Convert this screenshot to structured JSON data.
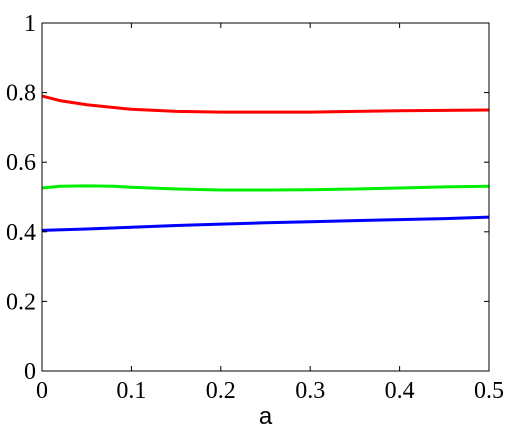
{
  "chart_data": {
    "type": "line",
    "xlabel": "a",
    "ylabel": "",
    "xlim": [
      0,
      0.5
    ],
    "ylim": [
      0,
      1
    ],
    "xticks": [
      0,
      0.1,
      0.2,
      0.3,
      0.4,
      0.5
    ],
    "xtick_labels": [
      "0",
      "0.1",
      "0.2",
      "0.3",
      "0.4",
      "0.5"
    ],
    "yticks": [
      0,
      0.2,
      0.4,
      0.6,
      0.8,
      1
    ],
    "ytick_labels": [
      "0",
      "0.2",
      "0.4",
      "0.6",
      "0.8",
      "1"
    ],
    "grid": false,
    "series": [
      {
        "color": "#ff0000",
        "x": [
          0,
          0.02,
          0.05,
          0.1,
          0.15,
          0.2,
          0.25,
          0.3,
          0.35,
          0.4,
          0.45,
          0.5
        ],
        "y": [
          0.79,
          0.777,
          0.765,
          0.752,
          0.746,
          0.744,
          0.744,
          0.744,
          0.746,
          0.748,
          0.749,
          0.75
        ]
      },
      {
        "color": "#00ee00",
        "x": [
          0,
          0.02,
          0.05,
          0.08,
          0.1,
          0.15,
          0.2,
          0.25,
          0.3,
          0.35,
          0.4,
          0.45,
          0.5
        ],
        "y": [
          0.526,
          0.531,
          0.532,
          0.531,
          0.528,
          0.523,
          0.52,
          0.52,
          0.521,
          0.523,
          0.526,
          0.529,
          0.531
        ]
      },
      {
        "color": "#0000ff",
        "x": [
          0,
          0.05,
          0.1,
          0.15,
          0.2,
          0.25,
          0.3,
          0.35,
          0.4,
          0.45,
          0.5
        ],
        "y": [
          0.404,
          0.408,
          0.413,
          0.418,
          0.422,
          0.426,
          0.429,
          0.432,
          0.435,
          0.438,
          0.442
        ]
      }
    ]
  }
}
